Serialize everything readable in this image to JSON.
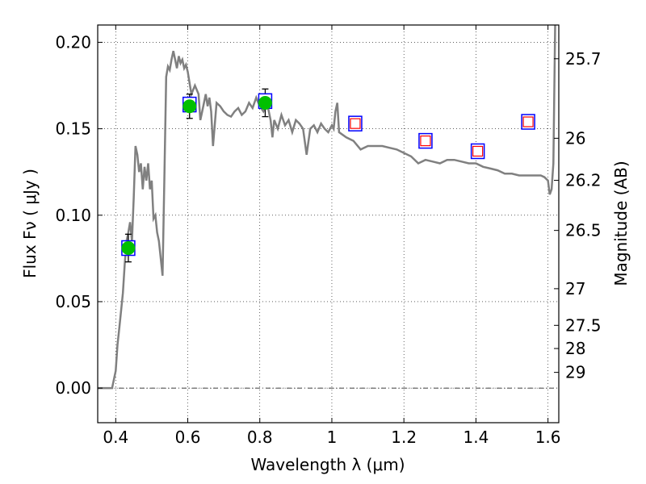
{
  "chart_data": {
    "type": "line",
    "xlabel": "Wavelength  λ (μm)",
    "ylabel": "Flux  Fν  ( μJy )",
    "y2label": "Magnitude (AB)",
    "xlim": [
      0.35,
      1.63
    ],
    "ylim": [
      -0.02,
      0.21
    ],
    "x_ticks": [
      0.4,
      0.6,
      0.8,
      1.0,
      1.2,
      1.4,
      1.6
    ],
    "x_tick_labels": [
      "0.4",
      "0.6",
      "0.8",
      "1",
      "1.2",
      "1.4",
      "1.6"
    ],
    "y_ticks": [
      0.0,
      0.05,
      0.1,
      0.15,
      0.2
    ],
    "y_tick_labels": [
      "0.00",
      "0.05",
      "0.10",
      "0.15",
      "0.20"
    ],
    "y2_tick_labels": [
      {
        "label": "25.7",
        "flux": 0.1905
      },
      {
        "label": "26",
        "flux": 0.1445
      },
      {
        "label": "26.2",
        "flux": 0.1202
      },
      {
        "label": "26.5",
        "flux": 0.0912
      },
      {
        "label": "27",
        "flux": 0.0575
      },
      {
        "label": "27.5",
        "flux": 0.0363
      },
      {
        "label": "28",
        "flux": 0.0229
      },
      {
        "label": "29",
        "flux": 0.0091
      }
    ],
    "grid": true,
    "zero_line": true,
    "colors": {
      "model": "#808080",
      "observed_fill": "#00c000",
      "square_edge": "#0000ff",
      "model_flux_square": "#ff0000",
      "errorbar": "#000000"
    },
    "model_spectrum": {
      "x": [
        0.35,
        0.39,
        0.4,
        0.405,
        0.41,
        0.415,
        0.42,
        0.425,
        0.43,
        0.435,
        0.44,
        0.445,
        0.45,
        0.455,
        0.46,
        0.465,
        0.47,
        0.475,
        0.48,
        0.485,
        0.49,
        0.495,
        0.5,
        0.505,
        0.51,
        0.515,
        0.52,
        0.53,
        0.535,
        0.54,
        0.545,
        0.55,
        0.555,
        0.56,
        0.565,
        0.57,
        0.575,
        0.58,
        0.585,
        0.59,
        0.595,
        0.6,
        0.61,
        0.62,
        0.63,
        0.635,
        0.64,
        0.645,
        0.65,
        0.655,
        0.66,
        0.665,
        0.67,
        0.68,
        0.69,
        0.7,
        0.71,
        0.72,
        0.73,
        0.74,
        0.75,
        0.76,
        0.77,
        0.78,
        0.79,
        0.8,
        0.81,
        0.82,
        0.83,
        0.835,
        0.84,
        0.85,
        0.86,
        0.87,
        0.88,
        0.89,
        0.9,
        0.91,
        0.92,
        0.93,
        0.94,
        0.95,
        0.96,
        0.97,
        0.98,
        0.99,
        1.0,
        1.005,
        1.01,
        1.015,
        1.02,
        1.04,
        1.06,
        1.08,
        1.1,
        1.12,
        1.14,
        1.16,
        1.18,
        1.2,
        1.22,
        1.24,
        1.26,
        1.28,
        1.3,
        1.32,
        1.34,
        1.36,
        1.38,
        1.4,
        1.42,
        1.44,
        1.46,
        1.48,
        1.5,
        1.52,
        1.54,
        1.56,
        1.58,
        1.59,
        1.6,
        1.605,
        1.61,
        1.615,
        1.62,
        1.625
      ],
      "y": [
        0.0,
        0.0,
        0.01,
        0.025,
        0.035,
        0.045,
        0.055,
        0.072,
        0.085,
        0.09,
        0.096,
        0.085,
        0.11,
        0.14,
        0.135,
        0.125,
        0.13,
        0.115,
        0.128,
        0.12,
        0.13,
        0.115,
        0.12,
        0.098,
        0.1,
        0.09,
        0.085,
        0.065,
        0.12,
        0.18,
        0.186,
        0.184,
        0.19,
        0.195,
        0.19,
        0.185,
        0.192,
        0.188,
        0.19,
        0.185,
        0.187,
        0.183,
        0.17,
        0.175,
        0.17,
        0.155,
        0.16,
        0.165,
        0.17,
        0.163,
        0.168,
        0.16,
        0.14,
        0.165,
        0.163,
        0.16,
        0.158,
        0.157,
        0.16,
        0.162,
        0.158,
        0.16,
        0.165,
        0.162,
        0.168,
        0.163,
        0.16,
        0.165,
        0.155,
        0.145,
        0.155,
        0.15,
        0.158,
        0.152,
        0.155,
        0.148,
        0.155,
        0.153,
        0.15,
        0.135,
        0.15,
        0.152,
        0.148,
        0.153,
        0.15,
        0.148,
        0.152,
        0.15,
        0.16,
        0.165,
        0.148,
        0.145,
        0.143,
        0.138,
        0.14,
        0.14,
        0.14,
        0.139,
        0.138,
        0.136,
        0.134,
        0.13,
        0.132,
        0.131,
        0.13,
        0.132,
        0.132,
        0.131,
        0.13,
        0.13,
        0.128,
        0.127,
        0.126,
        0.124,
        0.124,
        0.123,
        0.123,
        0.123,
        0.123,
        0.122,
        0.12,
        0.112,
        0.115,
        0.13,
        0.21,
        0.215
      ]
    },
    "observed_points": {
      "x": [
        0.435,
        0.605,
        0.815
      ],
      "y": [
        0.081,
        0.163,
        0.165
      ],
      "yerr": [
        0.008,
        0.007,
        0.008
      ]
    },
    "model_flux_squares": {
      "x": [
        0.435,
        0.605,
        0.815,
        1.065,
        1.26,
        1.405,
        1.545
      ],
      "y": [
        0.081,
        0.164,
        0.166,
        0.153,
        0.143,
        0.137,
        0.154
      ],
      "filled_inner": [
        false,
        false,
        false,
        true,
        true,
        true,
        true
      ]
    }
  }
}
